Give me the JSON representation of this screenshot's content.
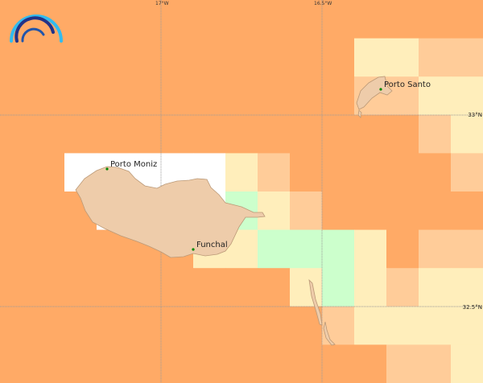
{
  "map": {
    "colors": {
      "O": "#ffaa66",
      "L": "#ffcc99",
      "Y": "#ffeebb",
      "G": "#ccffcc",
      "W": "#ffffff",
      "land": "#eeccaa",
      "coast": "#bb9977",
      "grid": "#999999",
      "city_dot": "#008800"
    },
    "cells": [
      "OOOOOOOOOOOOOOO",
      "OOOOOOOOOOOYYLL",
      "OOOOOOOOOOOLLYY",
      "OOOOOOOOOOOOOLY",
      "OOWWWWWYLOOOOOL",
      "OOOWWWWGYLOOOOO",
      "OOOOOOYYGGGYOLL",
      "OOOOOOOOOYGYLYY",
      "OOOOOOOOOOLYYYY",
      "OOOOOOOOOOOOLLY"
    ],
    "longitude_labels": [
      "17°W",
      "16.5°W"
    ],
    "latitude_labels": [
      "33°N",
      "32.5°N"
    ],
    "cities": [
      {
        "name": "Porto Moniz"
      },
      {
        "name": "Funchal"
      },
      {
        "name": "Porto Santo"
      }
    ],
    "logo": "rainbow-arcs-logo"
  }
}
